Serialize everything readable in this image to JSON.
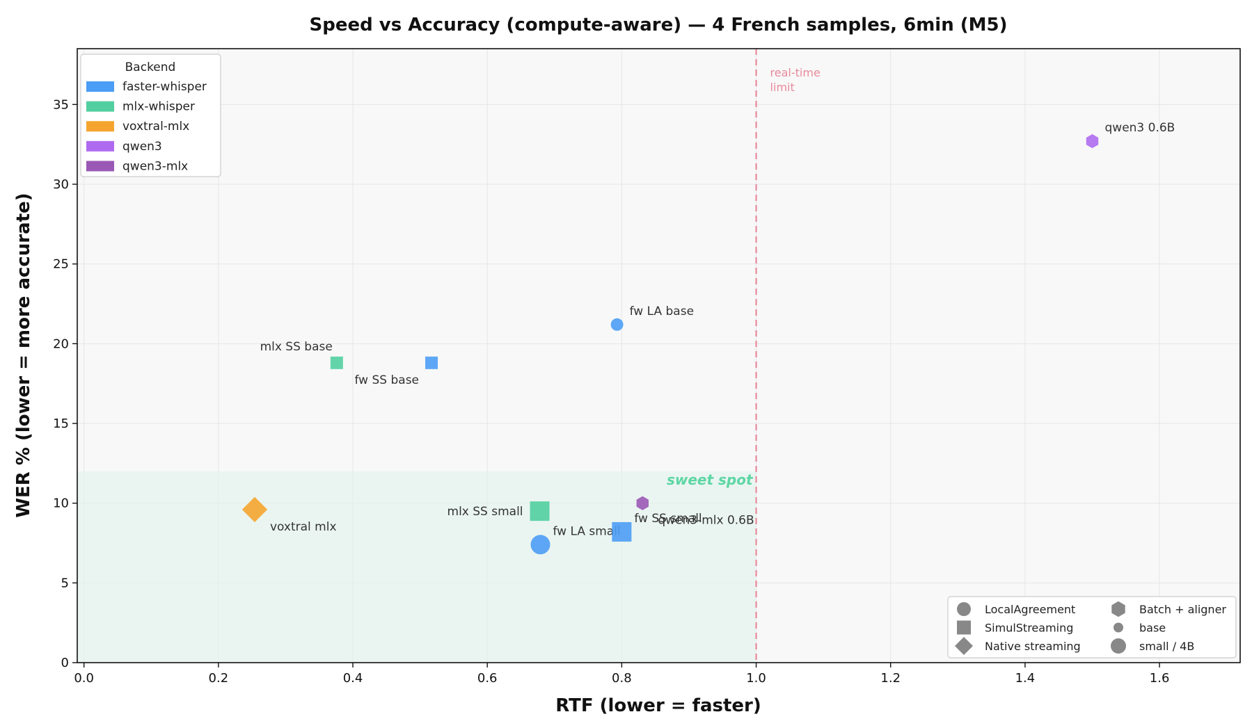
{
  "chart_data": {
    "type": "scatter",
    "title": "Speed vs Accuracy (compute-aware) — 4 French samples, 6min (M5)",
    "xlabel": "RTF (lower = faster)",
    "ylabel": "WER % (lower = more accurate)",
    "xlim": [
      -0.01,
      1.72
    ],
    "ylim": [
      0,
      38.5
    ],
    "xticks": [
      0.0,
      0.2,
      0.4,
      0.6,
      0.8,
      1.0,
      1.2,
      1.4,
      1.6
    ],
    "xtick_labels": [
      "0.0",
      "0.2",
      "0.4",
      "0.6",
      "0.8",
      "1.0",
      "1.2",
      "1.4",
      "1.6"
    ],
    "yticks": [
      0,
      5,
      10,
      15,
      20,
      25,
      30,
      35
    ],
    "ytick_labels": [
      "0",
      "5",
      "10",
      "15",
      "20",
      "25",
      "30",
      "35"
    ],
    "grid": true,
    "sweet_spot": {
      "label": "sweet spot",
      "x_max": 1.0,
      "y_max": 12,
      "color": "#5dd6a4"
    },
    "realtime_line": {
      "x": 1.0,
      "label_line1": "real-time",
      "label_line2": "limit",
      "color": "#e8899b"
    },
    "backend_legend": {
      "title": "Backend",
      "placement": "top-left",
      "entries": [
        {
          "label": "faster-whisper",
          "color": "#4c9df5"
        },
        {
          "label": "mlx-whisper",
          "color": "#52cfa0"
        },
        {
          "label": "voxtral-mlx",
          "color": "#f5a52f"
        },
        {
          "label": "qwen3",
          "color": "#ae6bf0"
        },
        {
          "label": "qwen3-mlx",
          "color": "#9b59b6"
        }
      ]
    },
    "marker_legend": {
      "placement": "bottom-right",
      "entries": [
        {
          "label": "LocalAgreement",
          "shape": "circle",
          "size": "small"
        },
        {
          "label": "SimulStreaming",
          "shape": "square",
          "size": "small"
        },
        {
          "label": "Native streaming",
          "shape": "diamond",
          "size": "small"
        },
        {
          "label": "Batch + aligner",
          "shape": "hexagon",
          "size": "small"
        },
        {
          "label": "base",
          "shape": "circle",
          "size": "tiny"
        },
        {
          "label": "small / 4B",
          "shape": "circle",
          "size": "medium"
        }
      ]
    },
    "points": [
      {
        "name": "fw LA base",
        "backend": "faster-whisper",
        "shape": "circle",
        "size": "base",
        "x": 0.793,
        "y": 21.2,
        "color": "#4c9df5",
        "label_pos": "above-right"
      },
      {
        "name": "fw SS base",
        "backend": "faster-whisper",
        "shape": "square",
        "size": "base",
        "x": 0.517,
        "y": 18.8,
        "color": "#4c9df5",
        "label_pos": "below-left"
      },
      {
        "name": "mlx SS base",
        "backend": "mlx-whisper",
        "shape": "square",
        "size": "base",
        "x": 0.376,
        "y": 18.8,
        "color": "#52cfa0",
        "label_pos": "above-left"
      },
      {
        "name": "qwen3 0.6B",
        "backend": "qwen3",
        "shape": "hexagon",
        "size": "base",
        "x": 1.5,
        "y": 32.7,
        "color": "#ae6bf0",
        "label_pos": "above-right"
      },
      {
        "name": "voxtral mlx",
        "backend": "voxtral-mlx",
        "shape": "diamond",
        "size": "small",
        "x": 0.254,
        "y": 9.6,
        "color": "#f5a52f",
        "label_pos": "below-right"
      },
      {
        "name": "mlx SS small",
        "backend": "mlx-whisper",
        "shape": "square",
        "size": "small",
        "x": 0.678,
        "y": 9.5,
        "color": "#52cfa0",
        "label_pos": "left"
      },
      {
        "name": "fw LA small",
        "backend": "faster-whisper",
        "shape": "circle",
        "size": "small",
        "x": 0.679,
        "y": 7.4,
        "color": "#4c9df5",
        "label_pos": "above-right"
      },
      {
        "name": "fw SS small",
        "backend": "faster-whisper",
        "shape": "square",
        "size": "small",
        "x": 0.8,
        "y": 8.2,
        "color": "#4c9df5",
        "label_pos": "above-right"
      },
      {
        "name": "qwen3-mlx 0.6B",
        "backend": "qwen3-mlx",
        "shape": "hexagon",
        "size": "base",
        "x": 0.831,
        "y": 10.0,
        "color": "#9b59b6",
        "label_pos": "below-right"
      }
    ]
  }
}
